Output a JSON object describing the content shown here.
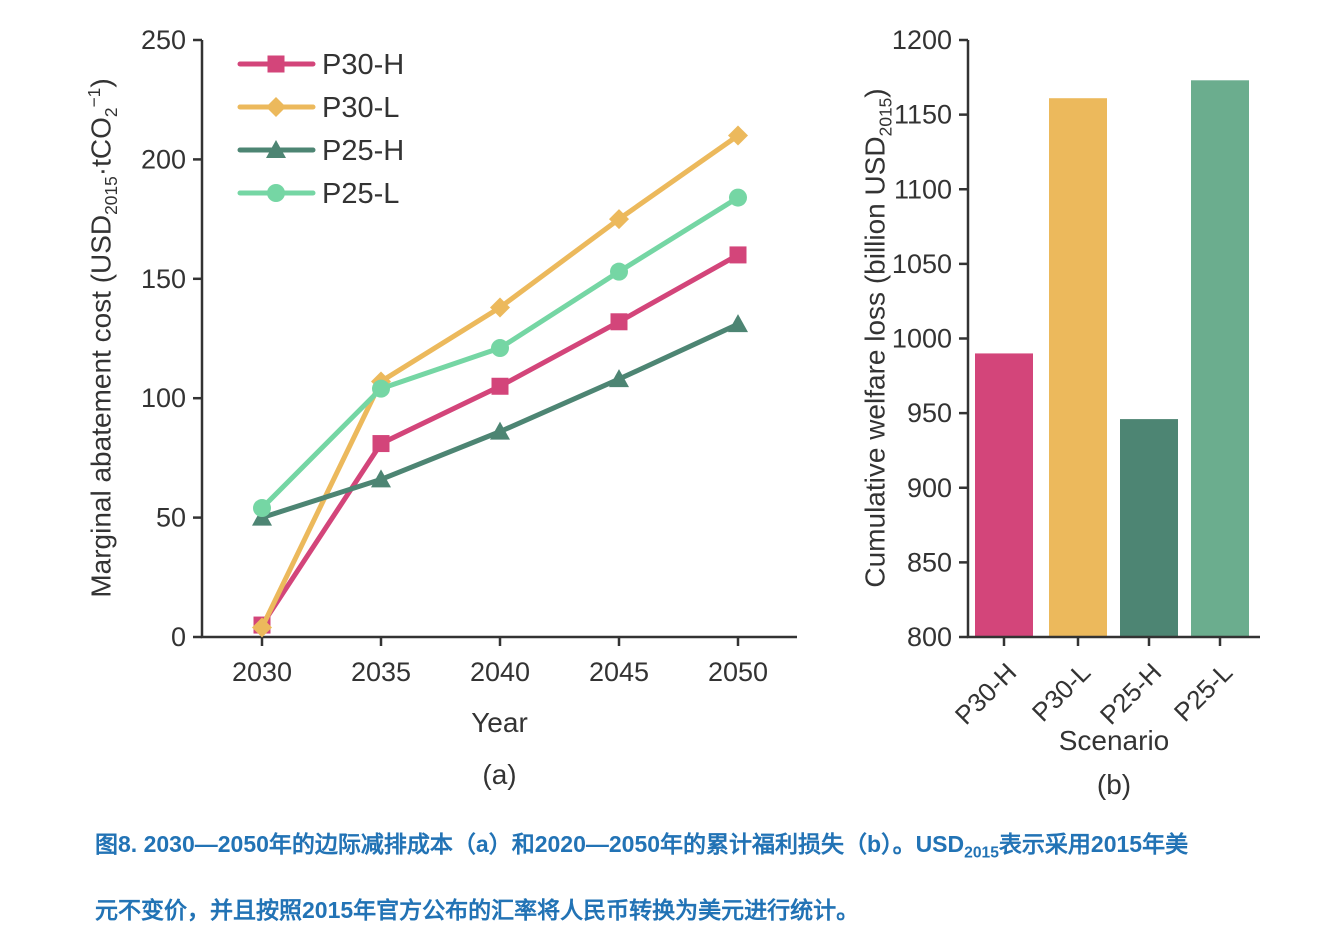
{
  "figure": {
    "caption": {
      "line1_pre": "图8. 2030—2050年的边际减排成本（a）和2020—2050年的累计福利损失（b）。USD",
      "line1_sub": "2015",
      "line1_post": "表示采用2015年美",
      "line2": "元不变价，并且按照2015年官方公布的汇率将人民币转换为美元进行统计。",
      "color": "#2273b5"
    },
    "text_color": "#333333",
    "background": "#ffffff"
  },
  "chart_data": [
    {
      "id": "a",
      "type": "line",
      "panel_label": "(a)",
      "xlabel": "Year",
      "ylabel": "Marginal abatement cost (USD2015·tCO2−1)",
      "ylabel_parts": {
        "pre": "Marginal abatement cost (USD",
        "sub1": "2015",
        "mid": "·tCO",
        "sub2": "2",
        "sup": "−1",
        "post": ")"
      },
      "x": [
        2030,
        2035,
        2040,
        2045,
        2050
      ],
      "ylim": [
        0,
        250
      ],
      "yticks": [
        0,
        50,
        100,
        150,
        200,
        250
      ],
      "grid": false,
      "legend_position": "top-left",
      "series": [
        {
          "name": "P30-H",
          "marker": "square",
          "color": "#d3457a",
          "values": [
            5,
            81,
            105,
            132,
            160
          ]
        },
        {
          "name": "P30-L",
          "marker": "diamond",
          "color": "#ecb95c",
          "values": [
            4,
            107,
            138,
            175,
            210
          ]
        },
        {
          "name": "P25-H",
          "marker": "triangle",
          "color": "#4d8573",
          "values": [
            50,
            66,
            86,
            108,
            131
          ]
        },
        {
          "name": "P25-L",
          "marker": "circle",
          "color": "#75d6a4",
          "values": [
            54,
            104,
            121,
            153,
            184
          ]
        }
      ]
    },
    {
      "id": "b",
      "type": "bar",
      "panel_label": "(b)",
      "xlabel": "Scenario",
      "ylabel": "Cumulative welfare loss (billion USD2015)",
      "ylabel_parts": {
        "pre": "Cumulative welfare loss (billion USD",
        "sub1": "2015",
        "post": ")"
      },
      "categories": [
        "P30-H",
        "P30-L",
        "P25-H",
        "P25-L"
      ],
      "values": [
        990,
        1161,
        946,
        1173
      ],
      "colors": [
        "#d3457a",
        "#ecb95c",
        "#4d8573",
        "#6bad8e"
      ],
      "ylim": [
        800,
        1200
      ],
      "yticks": [
        800,
        850,
        900,
        950,
        1000,
        1050,
        1100,
        1150,
        1200
      ],
      "grid": false
    }
  ]
}
